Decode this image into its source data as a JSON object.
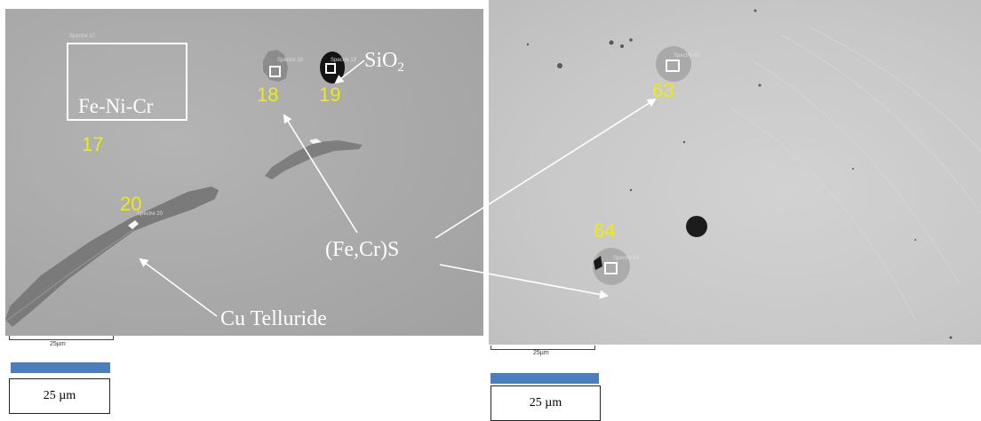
{
  "left_image": {
    "spectrum_box_caption": "Spectre 17",
    "region_label": "Fe-Ni-Cr",
    "spot_numbers": [
      "17",
      "18",
      "19",
      "20"
    ],
    "spot_captions": [
      "Spectre 18",
      "Spectre 19",
      "Spectre 20"
    ],
    "scale_text": "25µm"
  },
  "right_image": {
    "spot_numbers": [
      "63",
      "64"
    ],
    "spot_captions": [
      "Spectre 63",
      "Spectre 64"
    ],
    "scale_text": "25µm"
  },
  "annotations": {
    "sio2_label": "SiO",
    "sio2_subscript": "2",
    "sulfide_label": "(Fe,Cr)S",
    "telluride_label": "Cu Telluride"
  },
  "scale_boxes": {
    "left": "25 µm",
    "right": "25 µm"
  },
  "colors": {
    "label_yellow": "#f0ea10",
    "scale_blue": "#4a7ebf",
    "arrow_white": "#ffffff"
  }
}
